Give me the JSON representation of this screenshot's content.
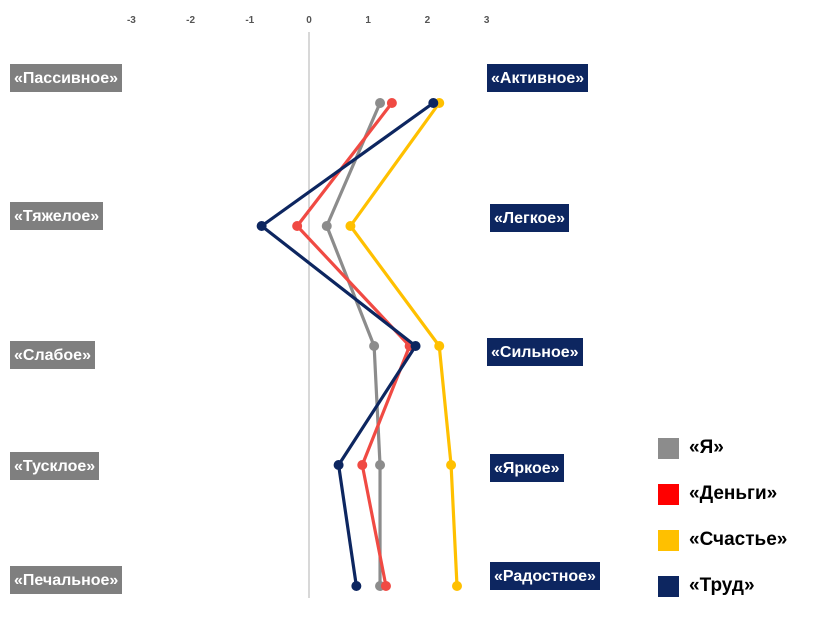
{
  "chart_data": {
    "type": "line",
    "orientation": "horizontal-values",
    "x_ticks": [
      "-3",
      "-2",
      "-1",
      "0",
      "1",
      "2",
      "3"
    ],
    "xlim": [
      -3,
      3
    ],
    "left_labels": [
      "«Пассивное»",
      "«Тяжелое»",
      "«Слабое»",
      "«Тусклое»",
      "«Печальное»"
    ],
    "right_labels": [
      "«Активное»",
      "«Легкое»",
      "«Сильное»",
      "«Яркое»",
      "«Радостное»"
    ],
    "series": [
      {
        "name": "«Я»",
        "color": "#8c8c8c",
        "values": [
          1.2,
          0.3,
          1.1,
          1.2,
          1.2
        ]
      },
      {
        "name": "«Деньги»",
        "color": "#f04a43",
        "values": [
          1.4,
          -0.2,
          1.7,
          0.9,
          1.3
        ]
      },
      {
        "name": "«Счастье»",
        "color": "#ffc000",
        "values": [
          2.2,
          0.7,
          2.2,
          2.4,
          2.5
        ]
      },
      {
        "name": "«Труд»",
        "color": "#0d2660",
        "values": [
          2.1,
          -0.8,
          1.8,
          0.5,
          0.8
        ]
      }
    ],
    "legend": {
      "position": "bottom-right",
      "items": [
        {
          "label": "«Я»",
          "color": "#8c8c8c"
        },
        {
          "label": "«Деньги»",
          "color": "#ff0000"
        },
        {
          "label": "«Счастье»",
          "color": "#ffc000"
        },
        {
          "label": "«Труд»",
          "color": "#0d2660"
        }
      ]
    },
    "grid": false
  }
}
